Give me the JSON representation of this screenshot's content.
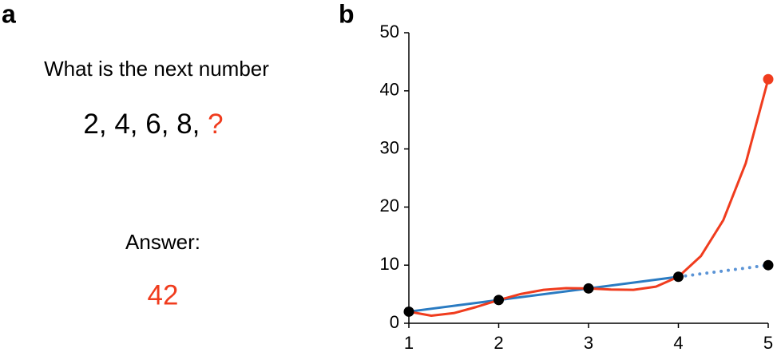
{
  "panel_a": {
    "label": "a",
    "question": "What is the next number",
    "sequence": "2, 4, 6, 8,",
    "unknown": "?",
    "answer_label": "Answer:",
    "answer": "42"
  },
  "chart_data": {
    "type": "line",
    "label": "b",
    "xlim": [
      1,
      5
    ],
    "ylim": [
      0,
      50
    ],
    "xticks": [
      1,
      2,
      3,
      4,
      5
    ],
    "yticks": [
      0,
      10,
      20,
      30,
      40,
      50
    ],
    "series": [
      {
        "style": "solid",
        "color": "#2a7bc2",
        "x": [
          1,
          4
        ],
        "values": [
          2,
          8
        ]
      },
      {
        "style": "dotted",
        "color": "#5b94d6",
        "x": [
          4,
          5
        ],
        "values": [
          8,
          10
        ]
      },
      {
        "style": "curve",
        "color": "#f03c1e",
        "x": [
          1,
          1.25,
          1.5,
          1.75,
          2,
          2.25,
          2.5,
          2.75,
          3,
          3.25,
          3.5,
          3.75,
          4,
          4.25,
          4.5,
          4.75,
          5
        ],
        "values": [
          2,
          1.3,
          1.75,
          2.8,
          4,
          5.05,
          5.75,
          6.05,
          6,
          5.8,
          5.75,
          6.3,
          8,
          11.55,
          17.75,
          27.55,
          42
        ]
      },
      {
        "style": "markers",
        "color": "#000000",
        "x": [
          1,
          2,
          3,
          4,
          5
        ],
        "values": [
          2,
          4,
          6,
          8,
          10
        ]
      },
      {
        "style": "markers",
        "color": "#f03c1e",
        "x": [
          5
        ],
        "values": [
          42
        ]
      }
    ]
  }
}
